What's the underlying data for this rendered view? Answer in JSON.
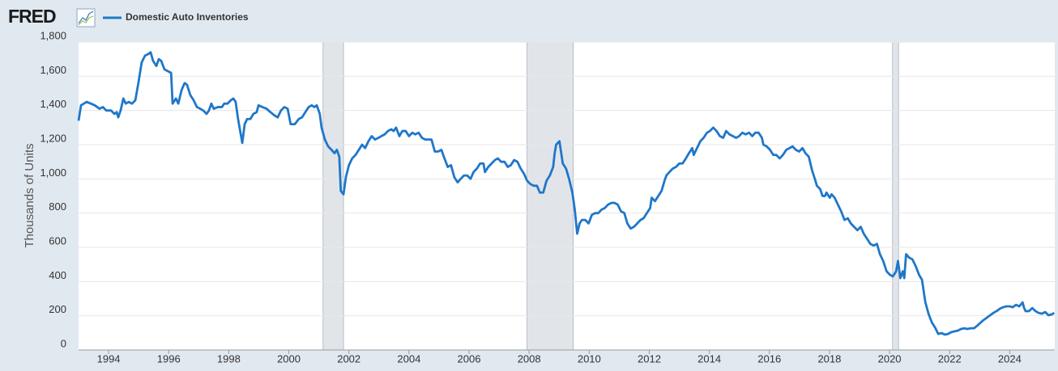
{
  "logo": "FRED",
  "chart_data": {
    "type": "line",
    "y_label": "Thousands of Units",
    "xlim": [
      1993,
      2025.5
    ],
    "xticks": [
      1994,
      1996,
      1998,
      2000,
      2002,
      2004,
      2006,
      2008,
      2010,
      2012,
      2014,
      2016,
      2018,
      2020,
      2022,
      2024
    ],
    "ylim": [
      0,
      1800
    ],
    "yticks": [
      0,
      200,
      400,
      600,
      800,
      {
        "value": 1000,
        "label": "1,000"
      },
      {
        "value": 1200,
        "label": "1,200"
      },
      {
        "value": 1400,
        "label": "1,400"
      },
      {
        "value": 1600,
        "label": "1,600"
      },
      {
        "value": 1800,
        "label": "1,800"
      }
    ],
    "grid": true,
    "recessions": [
      [
        2001.14,
        2001.82
      ],
      [
        2007.93,
        2009.47
      ],
      [
        2020.1,
        2020.3
      ]
    ],
    "x": [
      1993.0,
      1993.08,
      1993.27,
      1993.41,
      1993.54,
      1993.7,
      1993.81,
      1993.92,
      1994.08,
      1994.19,
      1994.27,
      1994.32,
      1994.4,
      1994.49,
      1994.57,
      1994.67,
      1994.78,
      1994.89,
      1995.0,
      1995.1,
      1995.21,
      1995.32,
      1995.4,
      1995.48,
      1995.59,
      1995.67,
      1995.75,
      1995.86,
      1995.97,
      1996.08,
      1996.13,
      1996.24,
      1996.32,
      1996.43,
      1996.53,
      1996.61,
      1996.72,
      1996.83,
      1996.94,
      1997.05,
      1997.15,
      1997.26,
      1997.34,
      1997.42,
      1997.5,
      1997.64,
      1997.77,
      1997.85,
      1997.96,
      1998.07,
      1998.15,
      1998.23,
      1998.31,
      1998.45,
      1998.53,
      1998.61,
      1998.72,
      1998.82,
      1998.93,
      1998.99,
      1999.12,
      1999.26,
      1999.39,
      1999.53,
      1999.63,
      1999.74,
      1999.85,
      1999.96,
      2000.06,
      2000.2,
      2000.33,
      2000.44,
      2000.55,
      2000.66,
      2000.76,
      2000.85,
      2000.93,
      2001.03,
      2001.09,
      2001.2,
      2001.31,
      2001.42,
      2001.52,
      2001.6,
      2001.68,
      2001.73,
      2001.82,
      2001.9,
      2002.0,
      2002.11,
      2002.22,
      2002.33,
      2002.44,
      2002.54,
      2002.65,
      2002.76,
      2002.87,
      2002.98,
      2003.08,
      2003.19,
      2003.3,
      2003.41,
      2003.49,
      2003.57,
      2003.68,
      2003.78,
      2003.89,
      2004.0,
      2004.11,
      2004.21,
      2004.32,
      2004.43,
      2004.54,
      2004.65,
      2004.75,
      2004.86,
      2004.97,
      2005.08,
      2005.18,
      2005.29,
      2005.4,
      2005.51,
      2005.62,
      2005.72,
      2005.83,
      2005.94,
      2006.05,
      2006.15,
      2006.26,
      2006.37,
      2006.48,
      2006.53,
      2006.64,
      2006.75,
      2006.86,
      2006.96,
      2007.07,
      2007.18,
      2007.29,
      2007.39,
      2007.5,
      2007.61,
      2007.72,
      2007.83,
      2007.93,
      2008.04,
      2008.15,
      2008.26,
      2008.36,
      2008.47,
      2008.58,
      2008.69,
      2008.8,
      2008.85,
      2008.9,
      2009.01,
      2009.12,
      2009.23,
      2009.33,
      2009.44,
      2009.52,
      2009.6,
      2009.68,
      2009.76,
      2009.87,
      2009.98,
      2010.09,
      2010.2,
      2010.3,
      2010.41,
      2010.52,
      2010.63,
      2010.74,
      2010.84,
      2010.95,
      2011.06,
      2011.17,
      2011.27,
      2011.38,
      2011.49,
      2011.6,
      2011.71,
      2011.81,
      2011.92,
      2012.03,
      2012.08,
      2012.19,
      2012.3,
      2012.41,
      2012.51,
      2012.57,
      2012.67,
      2012.78,
      2012.89,
      2013.0,
      2013.11,
      2013.22,
      2013.32,
      2013.43,
      2013.48,
      2013.59,
      2013.7,
      2013.81,
      2013.92,
      2014.02,
      2014.13,
      2014.24,
      2014.35,
      2014.46,
      2014.56,
      2014.67,
      2014.78,
      2014.89,
      2014.99,
      2015.1,
      2015.21,
      2015.32,
      2015.43,
      2015.53,
      2015.64,
      2015.75,
      2015.8,
      2015.91,
      2016.02,
      2016.13,
      2016.23,
      2016.34,
      2016.45,
      2016.56,
      2016.67,
      2016.77,
      2016.88,
      2016.99,
      2017.1,
      2017.2,
      2017.31,
      2017.42,
      2017.53,
      2017.58,
      2017.69,
      2017.77,
      2017.85,
      2017.9,
      2018.01,
      2018.07,
      2018.17,
      2018.28,
      2018.39,
      2018.5,
      2018.61,
      2018.71,
      2018.82,
      2018.93,
      2019.04,
      2019.14,
      2019.25,
      2019.36,
      2019.47,
      2019.58,
      2019.68,
      2019.79,
      2019.9,
      2020.01,
      2020.11,
      2020.22,
      2020.28,
      2020.36,
      2020.44,
      2020.49,
      2020.55,
      2020.65,
      2020.76,
      2020.87,
      2020.98,
      2021.08,
      2021.19,
      2021.3,
      2021.41,
      2021.52,
      2021.62,
      2021.73,
      2021.84,
      2021.95,
      2022.05,
      2022.16,
      2022.27,
      2022.38,
      2022.49,
      2022.59,
      2022.7,
      2022.81,
      2022.92,
      2023.03,
      2023.13,
      2023.24,
      2023.35,
      2023.46,
      2023.56,
      2023.67,
      2023.78,
      2023.89,
      2024.0,
      2024.1,
      2024.21,
      2024.32,
      2024.43,
      2024.48,
      2024.53,
      2024.64,
      2024.75,
      2024.86,
      2024.96,
      2025.07,
      2025.18,
      2025.29,
      2025.4,
      2025.48
    ],
    "series": [
      {
        "name": "Domestic Auto Inventories",
        "color": "#1f77c9",
        "values": [
          1340,
          1430,
          1450,
          1440,
          1430,
          1410,
          1420,
          1400,
          1400,
          1380,
          1390,
          1360,
          1400,
          1470,
          1440,
          1450,
          1440,
          1460,
          1570,
          1680,
          1720,
          1730,
          1740,
          1690,
          1660,
          1700,
          1690,
          1640,
          1630,
          1620,
          1440,
          1470,
          1440,
          1520,
          1560,
          1550,
          1490,
          1460,
          1420,
          1410,
          1400,
          1380,
          1400,
          1440,
          1410,
          1420,
          1420,
          1440,
          1440,
          1460,
          1470,
          1450,
          1350,
          1210,
          1320,
          1350,
          1350,
          1380,
          1390,
          1430,
          1420,
          1410,
          1390,
          1370,
          1360,
          1400,
          1420,
          1410,
          1320,
          1320,
          1350,
          1360,
          1390,
          1420,
          1430,
          1420,
          1430,
          1380,
          1300,
          1230,
          1190,
          1170,
          1150,
          1170,
          1130,
          930,
          910,
          1010,
          1080,
          1120,
          1140,
          1170,
          1200,
          1180,
          1220,
          1250,
          1230,
          1240,
          1250,
          1260,
          1280,
          1290,
          1280,
          1300,
          1250,
          1280,
          1280,
          1250,
          1270,
          1260,
          1270,
          1240,
          1230,
          1230,
          1230,
          1160,
          1160,
          1170,
          1120,
          1070,
          1080,
          1010,
          980,
          1000,
          1020,
          1020,
          1000,
          1040,
          1060,
          1090,
          1090,
          1040,
          1070,
          1090,
          1110,
          1120,
          1100,
          1100,
          1070,
          1080,
          1110,
          1100,
          1060,
          1030,
          990,
          970,
          960,
          960,
          920,
          920,
          990,
          1020,
          1070,
          1150,
          1200,
          1220,
          1090,
          1060,
          1000,
          920,
          820,
          680,
          740,
          760,
          760,
          740,
          790,
          800,
          800,
          820,
          830,
          850,
          860,
          860,
          850,
          810,
          800,
          740,
          710,
          720,
          740,
          760,
          770,
          800,
          830,
          890,
          870,
          900,
          930,
          990,
          1020,
          1040,
          1060,
          1070,
          1090,
          1090,
          1120,
          1150,
          1180,
          1140,
          1180,
          1220,
          1240,
          1270,
          1280,
          1300,
          1280,
          1250,
          1240,
          1280,
          1260,
          1250,
          1240,
          1250,
          1270,
          1260,
          1270,
          1250,
          1270,
          1270,
          1240,
          1200,
          1190,
          1170,
          1140,
          1140,
          1120,
          1140,
          1170,
          1180,
          1190,
          1170,
          1160,
          1180,
          1150,
          1130,
          1050,
          990,
          960,
          940,
          900,
          900,
          920,
          890,
          910,
          890,
          850,
          810,
          760,
          770,
          740,
          720,
          700,
          720,
          680,
          650,
          620,
          610,
          620,
          560,
          520,
          460,
          440,
          430,
          460,
          520,
          420,
          460,
          420,
          560,
          540,
          530,
          490,
          440,
          410,
          280,
          210,
          160,
          130,
          94,
          99,
          90,
          94,
          104,
          109,
          113,
          123,
          127,
          123,
          127,
          127,
          142,
          160,
          175,
          189,
          203,
          217,
          227,
          241,
          250,
          255,
          255,
          250,
          264,
          255,
          278,
          245,
          227,
          227,
          245,
          227,
          217,
          212,
          222,
          203,
          208,
          217
        ]
      }
    ]
  }
}
